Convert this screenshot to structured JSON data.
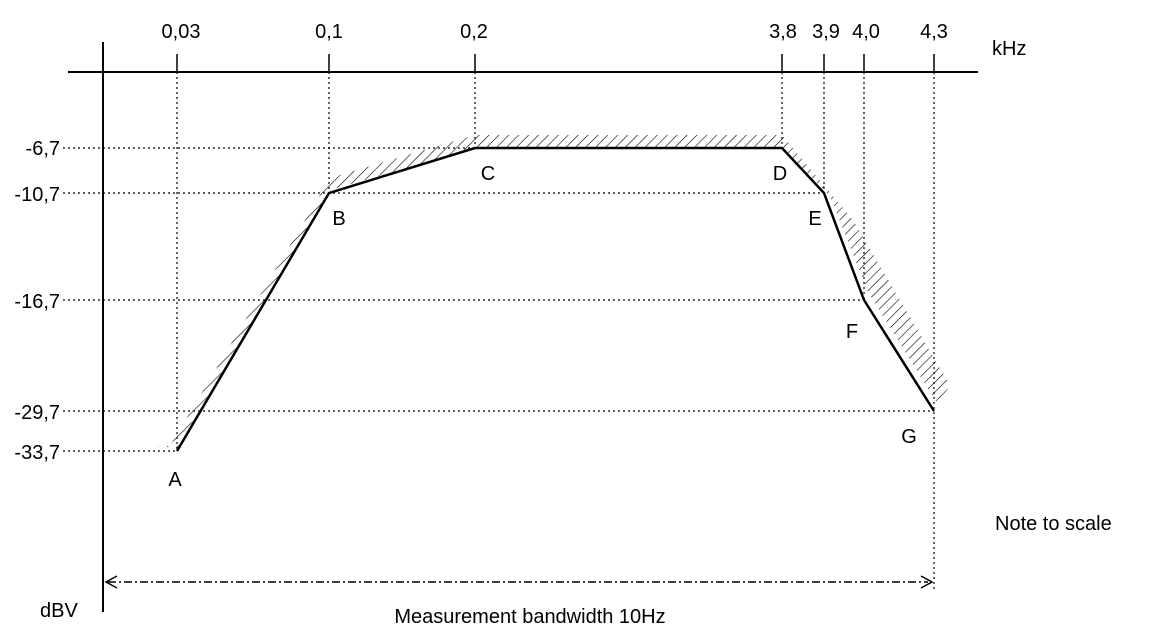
{
  "chart_data": {
    "type": "line",
    "x_unit": "kHz",
    "y_unit": "dBV",
    "x_ticks": [
      "0,03",
      "0,1",
      "0,2",
      "3,8",
      "3,9",
      "4,0",
      "4,3"
    ],
    "y_ticks": [
      "-6,7",
      "-10,7",
      "-16,7",
      "-29,7",
      "-33,7"
    ],
    "points": [
      {
        "label": "A",
        "x": 0.03,
        "y": -33.7
      },
      {
        "label": "B",
        "x": 0.1,
        "y": -10.7
      },
      {
        "label": "C",
        "x": 0.2,
        "y": -6.7
      },
      {
        "label": "D",
        "x": 3.8,
        "y": -6.7
      },
      {
        "label": "E",
        "x": 3.9,
        "y": -10.7
      },
      {
        "label": "F",
        "x": 4.0,
        "y": -16.7
      },
      {
        "label": "G",
        "x": 4.3,
        "y": -29.7
      }
    ],
    "bandwidth_label": "Measurement bandwidth 10Hz",
    "note": "Note to scale",
    "line_color": "#000000",
    "hatch_color": "#000000"
  }
}
